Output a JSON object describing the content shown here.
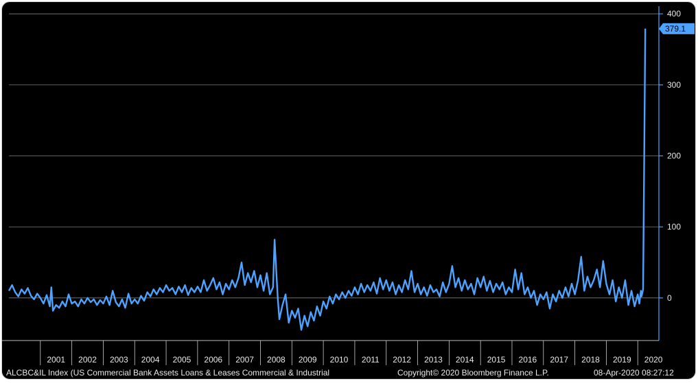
{
  "chart_data": {
    "type": "line",
    "title": "",
    "xlabel": "",
    "ylabel": "",
    "xlim": [
      2000.0,
      2020.65
    ],
    "ylim": [
      -60,
      405
    ],
    "yticks": [
      0,
      100,
      200,
      300,
      400
    ],
    "year_labels": [
      "2001",
      "2002",
      "2003",
      "2004",
      "2005",
      "2006",
      "2007",
      "2008",
      "2009",
      "2010",
      "2011",
      "2012",
      "2013",
      "2014",
      "2015",
      "2016",
      "2017",
      "2018",
      "2019",
      "2020"
    ],
    "grid": "horizontal",
    "axis_position": "right",
    "last_value_label": "379.1",
    "colors": {
      "line": "#4da3ff",
      "background": "#000000",
      "grid": "#7f7f7f",
      "axis": "#4da3ff",
      "text": "#e8e8e8",
      "label_bg": "#4da3ff"
    },
    "series": [
      {
        "points": [
          [
            2000.0,
            10
          ],
          [
            2000.1,
            18
          ],
          [
            2000.2,
            8
          ],
          [
            2000.3,
            2
          ],
          [
            2000.4,
            12
          ],
          [
            2000.5,
            6
          ],
          [
            2000.6,
            14
          ],
          [
            2000.7,
            3
          ],
          [
            2000.8,
            -2
          ],
          [
            2000.9,
            6
          ],
          [
            2001.0,
            0
          ],
          [
            2001.1,
            -8
          ],
          [
            2001.2,
            4
          ],
          [
            2001.3,
            -12
          ],
          [
            2001.35,
            15
          ],
          [
            2001.4,
            -18
          ],
          [
            2001.5,
            -10
          ],
          [
            2001.6,
            -14
          ],
          [
            2001.7,
            -5
          ],
          [
            2001.8,
            -12
          ],
          [
            2001.9,
            5
          ],
          [
            2002.0,
            -8
          ],
          [
            2002.1,
            -5
          ],
          [
            2002.2,
            -12
          ],
          [
            2002.3,
            -2
          ],
          [
            2002.4,
            -8
          ],
          [
            2002.5,
            0
          ],
          [
            2002.6,
            -6
          ],
          [
            2002.7,
            -2
          ],
          [
            2002.8,
            -10
          ],
          [
            2002.9,
            -3
          ],
          [
            2003.0,
            -8
          ],
          [
            2003.1,
            2
          ],
          [
            2003.2,
            -10
          ],
          [
            2003.3,
            10
          ],
          [
            2003.4,
            -6
          ],
          [
            2003.5,
            -12
          ],
          [
            2003.6,
            -2
          ],
          [
            2003.7,
            -14
          ],
          [
            2003.8,
            6
          ],
          [
            2003.9,
            -8
          ],
          [
            2004.0,
            -2
          ],
          [
            2004.1,
            -8
          ],
          [
            2004.2,
            3
          ],
          [
            2004.3,
            -4
          ],
          [
            2004.4,
            8
          ],
          [
            2004.5,
            2
          ],
          [
            2004.6,
            12
          ],
          [
            2004.7,
            5
          ],
          [
            2004.8,
            14
          ],
          [
            2004.9,
            8
          ],
          [
            2005.0,
            18
          ],
          [
            2005.1,
            10
          ],
          [
            2005.2,
            14
          ],
          [
            2005.3,
            5
          ],
          [
            2005.4,
            16
          ],
          [
            2005.5,
            8
          ],
          [
            2005.6,
            18
          ],
          [
            2005.7,
            4
          ],
          [
            2005.8,
            14
          ],
          [
            2005.9,
            8
          ],
          [
            2006.0,
            16
          ],
          [
            2006.1,
            8
          ],
          [
            2006.2,
            25
          ],
          [
            2006.3,
            10
          ],
          [
            2006.4,
            18
          ],
          [
            2006.5,
            28
          ],
          [
            2006.6,
            12
          ],
          [
            2006.7,
            22
          ],
          [
            2006.8,
            5
          ],
          [
            2006.9,
            20
          ],
          [
            2007.0,
            12
          ],
          [
            2007.1,
            25
          ],
          [
            2007.2,
            15
          ],
          [
            2007.3,
            28
          ],
          [
            2007.4,
            50
          ],
          [
            2007.5,
            18
          ],
          [
            2007.6,
            35
          ],
          [
            2007.7,
            22
          ],
          [
            2007.8,
            38
          ],
          [
            2007.9,
            15
          ],
          [
            2008.0,
            32
          ],
          [
            2008.1,
            10
          ],
          [
            2008.2,
            35
          ],
          [
            2008.3,
            5
          ],
          [
            2008.4,
            15
          ],
          [
            2008.45,
            82
          ],
          [
            2008.5,
            40
          ],
          [
            2008.55,
            0
          ],
          [
            2008.6,
            -30
          ],
          [
            2008.7,
            -10
          ],
          [
            2008.8,
            5
          ],
          [
            2008.9,
            -35
          ],
          [
            2009.0,
            -18
          ],
          [
            2009.1,
            -28
          ],
          [
            2009.2,
            -15
          ],
          [
            2009.3,
            -45
          ],
          [
            2009.4,
            -25
          ],
          [
            2009.5,
            -40
          ],
          [
            2009.6,
            -20
          ],
          [
            2009.7,
            -32
          ],
          [
            2009.8,
            -12
          ],
          [
            2009.9,
            -25
          ],
          [
            2010.0,
            -5
          ],
          [
            2010.1,
            -15
          ],
          [
            2010.2,
            2
          ],
          [
            2010.3,
            -8
          ],
          [
            2010.4,
            5
          ],
          [
            2010.5,
            -2
          ],
          [
            2010.6,
            8
          ],
          [
            2010.7,
            0
          ],
          [
            2010.8,
            10
          ],
          [
            2010.9,
            3
          ],
          [
            2011.0,
            15
          ],
          [
            2011.1,
            5
          ],
          [
            2011.2,
            20
          ],
          [
            2011.3,
            8
          ],
          [
            2011.4,
            18
          ],
          [
            2011.5,
            10
          ],
          [
            2011.6,
            22
          ],
          [
            2011.7,
            6
          ],
          [
            2011.8,
            28
          ],
          [
            2011.9,
            12
          ],
          [
            2012.0,
            25
          ],
          [
            2012.1,
            10
          ],
          [
            2012.2,
            22
          ],
          [
            2012.3,
            5
          ],
          [
            2012.4,
            18
          ],
          [
            2012.5,
            8
          ],
          [
            2012.6,
            25
          ],
          [
            2012.7,
            12
          ],
          [
            2012.8,
            38
          ],
          [
            2012.9,
            8
          ],
          [
            2013.0,
            20
          ],
          [
            2013.1,
            5
          ],
          [
            2013.2,
            15
          ],
          [
            2013.3,
            3
          ],
          [
            2013.4,
            18
          ],
          [
            2013.5,
            8
          ],
          [
            2013.6,
            12
          ],
          [
            2013.7,
            2
          ],
          [
            2013.8,
            22
          ],
          [
            2013.9,
            8
          ],
          [
            2014.0,
            20
          ],
          [
            2014.1,
            45
          ],
          [
            2014.2,
            15
          ],
          [
            2014.3,
            28
          ],
          [
            2014.4,
            10
          ],
          [
            2014.5,
            25
          ],
          [
            2014.6,
            12
          ],
          [
            2014.7,
            20
          ],
          [
            2014.8,
            5
          ],
          [
            2014.9,
            28
          ],
          [
            2015.0,
            15
          ],
          [
            2015.1,
            30
          ],
          [
            2015.2,
            10
          ],
          [
            2015.3,
            24
          ],
          [
            2015.4,
            8
          ],
          [
            2015.5,
            20
          ],
          [
            2015.6,
            12
          ],
          [
            2015.7,
            22
          ],
          [
            2015.8,
            5
          ],
          [
            2015.9,
            15
          ],
          [
            2016.0,
            8
          ],
          [
            2016.1,
            40
          ],
          [
            2016.2,
            12
          ],
          [
            2016.3,
            35
          ],
          [
            2016.4,
            5
          ],
          [
            2016.5,
            15
          ],
          [
            2016.6,
            0
          ],
          [
            2016.7,
            10
          ],
          [
            2016.8,
            -10
          ],
          [
            2016.9,
            5
          ],
          [
            2017.0,
            -2
          ],
          [
            2017.1,
            8
          ],
          [
            2017.2,
            -15
          ],
          [
            2017.3,
            5
          ],
          [
            2017.4,
            -5
          ],
          [
            2017.5,
            10
          ],
          [
            2017.6,
            0
          ],
          [
            2017.7,
            15
          ],
          [
            2017.8,
            2
          ],
          [
            2017.9,
            20
          ],
          [
            2018.0,
            5
          ],
          [
            2018.1,
            25
          ],
          [
            2018.2,
            58
          ],
          [
            2018.3,
            10
          ],
          [
            2018.4,
            30
          ],
          [
            2018.5,
            15
          ],
          [
            2018.6,
            25
          ],
          [
            2018.7,
            40
          ],
          [
            2018.8,
            15
          ],
          [
            2018.9,
            52
          ],
          [
            2019.0,
            20
          ],
          [
            2019.1,
            5
          ],
          [
            2019.2,
            25
          ],
          [
            2019.3,
            -5
          ],
          [
            2019.4,
            15
          ],
          [
            2019.5,
            0
          ],
          [
            2019.6,
            25
          ],
          [
            2019.7,
            -10
          ],
          [
            2019.8,
            10
          ],
          [
            2019.9,
            -12
          ],
          [
            2020.0,
            5
          ],
          [
            2020.05,
            -8
          ],
          [
            2020.1,
            10
          ],
          [
            2020.12,
            2
          ],
          [
            2020.17,
            12
          ],
          [
            2020.24,
            379.1
          ]
        ]
      }
    ]
  },
  "footer": {
    "ticker": "ALCBC&IL Index (US Commercial Bank Assets Loans & Leases Commercial & Industrial",
    "copyright": "Copyright© 2020 Bloomberg Finance L.P.",
    "date": "08-Apr-2020 08:27:12"
  }
}
